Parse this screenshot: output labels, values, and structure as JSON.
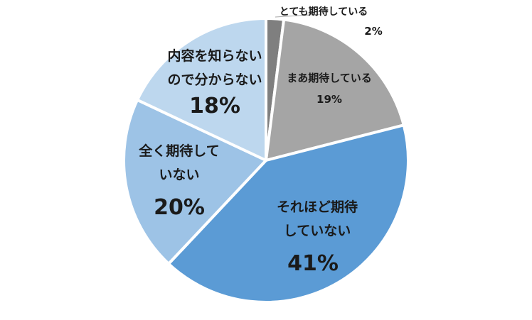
{
  "chart_data": {
    "type": "pie",
    "categories": [
      "とても期待している",
      "まあ期待している",
      "それほど期待\nしていない",
      "全く期待して\nいない",
      "内容を知らない\nので分からない"
    ],
    "values": [
      2,
      19,
      41,
      20,
      18
    ],
    "value_labels": [
      "2%",
      "19%",
      "41%",
      "20%",
      "18%"
    ],
    "colors": [
      "#7f7f7f",
      "#a5a5a5",
      "#5b9bd5",
      "#9dc3e6",
      "#bdd7ee"
    ]
  }
}
